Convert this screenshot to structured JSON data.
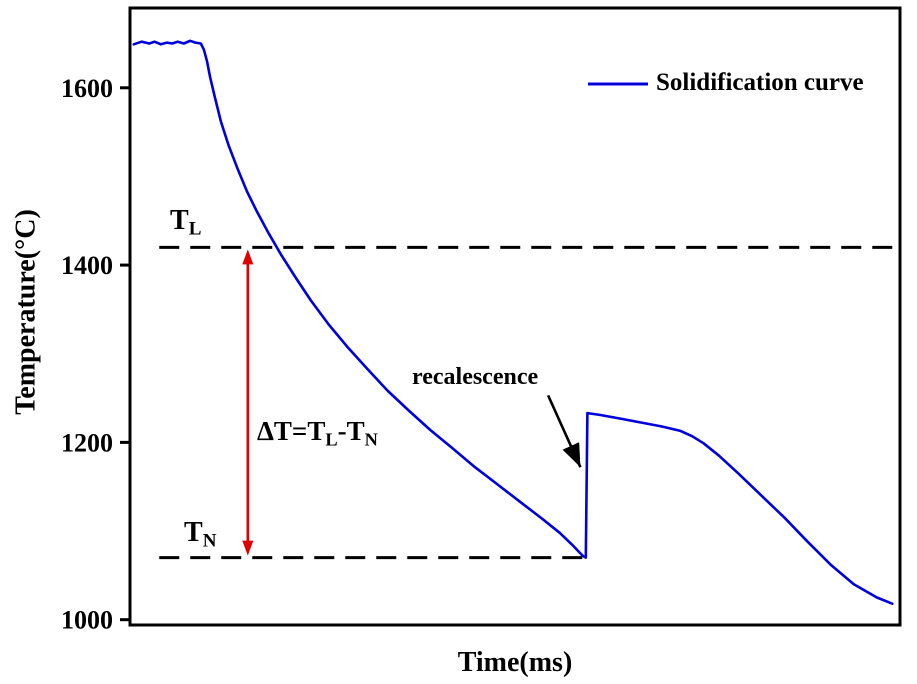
{
  "chart_data": {
    "type": "line",
    "title": "",
    "xlabel": "Time(ms)",
    "ylabel": "Temperature(°C)",
    "xlim": [
      0,
      1000
    ],
    "ylim": [
      994,
      1690
    ],
    "yticks": [
      1000,
      1200,
      1400,
      1600
    ],
    "grid": false,
    "curve_color": "#0000dd",
    "legend": {
      "position": "top-right",
      "entries": [
        {
          "label": "Solidification curve",
          "color": "#0000dd"
        }
      ]
    },
    "series": [
      {
        "name": "Solidification curve",
        "color": "#0000dd",
        "x": [
          5,
          15,
          25,
          32,
          40,
          48,
          55,
          62,
          70,
          78,
          85,
          92,
          96,
          100,
          104,
          110,
          118,
          128,
          140,
          152,
          165,
          180,
          196,
          215,
          235,
          258,
          282,
          308,
          335,
          362,
          390,
          418,
          448,
          478,
          508,
          535,
          558,
          576,
          588,
          592,
          594,
          610,
          635,
          660,
          690,
          715,
          730,
          745,
          765,
          790,
          820,
          850,
          880,
          910,
          940,
          970,
          990
        ],
        "y": [
          1649,
          1652,
          1650,
          1652,
          1649,
          1651,
          1650,
          1652,
          1650,
          1653,
          1651,
          1650,
          1643,
          1630,
          1612,
          1590,
          1562,
          1535,
          1508,
          1483,
          1460,
          1436,
          1412,
          1386,
          1360,
          1333,
          1308,
          1283,
          1258,
          1236,
          1214,
          1194,
          1172,
          1152,
          1132,
          1114,
          1098,
          1083,
          1072,
          1070,
          1233,
          1231,
          1227,
          1223,
          1218,
          1213,
          1207,
          1199,
          1185,
          1165,
          1140,
          1115,
          1088,
          1062,
          1040,
          1025,
          1018
        ]
      }
    ],
    "reference_lines": [
      {
        "name": "liquidus",
        "label_main": "T",
        "label_sub": "L",
        "value": 1420,
        "x_start": 38,
        "x_end": 998,
        "style": "dashed",
        "color": "#000000"
      },
      {
        "name": "nucleation",
        "label_main": "T",
        "label_sub": "N",
        "value": 1070,
        "x_start": 38,
        "x_end": 592,
        "style": "dashed",
        "color": "#000000"
      }
    ],
    "annotations": {
      "delta_t": {
        "parts": [
          "ΔT=T",
          "L",
          "-T",
          "N"
        ],
        "arrow_color": "#e00000",
        "arrow_x": 153
      },
      "recalescence": {
        "label": "recalescence",
        "arrow_from": [
          543,
          1253
        ],
        "arrow_to": [
          585,
          1172
        ],
        "arrow_color": "#000000"
      }
    }
  }
}
